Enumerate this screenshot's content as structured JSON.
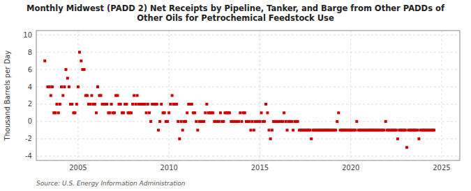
{
  "chart_data": {
    "type": "scatter",
    "title": "Monthly Midwest (PADD 2) Net Receipts by Pipeline, Tanker, and Barge from Other PADDs of\nOther Oils for Petrochemical Feedstock Use",
    "ylabel": "Thousand Barrels per Day",
    "source": "Source: U.S. Energy Information Administration",
    "color": "#cc0000",
    "marker": "square",
    "grid": true,
    "xlim": [
      2002.7,
      2026.0
    ],
    "ylim": [
      -4.5,
      10.5
    ],
    "yticks": [
      -4,
      -2,
      0,
      2,
      4,
      6,
      8,
      10
    ],
    "xticks": [
      2005,
      2010,
      2015,
      2020,
      2025
    ],
    "x": [
      2003.17,
      2003.33,
      2003.42,
      2003.5,
      2003.58,
      2003.67,
      2003.75,
      2003.83,
      2003.92,
      2004.0,
      2004.08,
      2004.17,
      2004.25,
      2004.33,
      2004.42,
      2004.5,
      2004.58,
      2004.67,
      2004.75,
      2004.83,
      2004.92,
      2005.0,
      2005.08,
      2005.17,
      2005.25,
      2005.33,
      2005.42,
      2005.5,
      2005.58,
      2005.67,
      2005.75,
      2005.83,
      2005.92,
      2006.0,
      2006.08,
      2006.17,
      2006.25,
      2006.33,
      2006.42,
      2006.5,
      2006.58,
      2006.67,
      2006.75,
      2006.83,
      2006.92,
      2007.0,
      2007.08,
      2007.17,
      2007.25,
      2007.33,
      2007.42,
      2007.5,
      2007.58,
      2007.67,
      2007.75,
      2007.83,
      2007.92,
      2008.0,
      2008.08,
      2008.17,
      2008.25,
      2008.33,
      2008.42,
      2008.5,
      2008.58,
      2008.67,
      2008.75,
      2008.83,
      2008.92,
      2009.0,
      2009.08,
      2009.17,
      2009.25,
      2009.33,
      2009.42,
      2009.5,
      2009.58,
      2009.67,
      2009.75,
      2009.83,
      2009.92,
      2010.0,
      2010.08,
      2010.17,
      2010.25,
      2010.33,
      2010.42,
      2010.5,
      2010.58,
      2010.67,
      2010.75,
      2010.83,
      2010.92,
      2011.0,
      2011.08,
      2011.17,
      2011.25,
      2011.33,
      2011.42,
      2011.5,
      2011.58,
      2011.67,
      2011.75,
      2011.83,
      2011.92,
      2012.0,
      2012.08,
      2012.17,
      2012.25,
      2012.33,
      2012.42,
      2012.5,
      2012.58,
      2012.67,
      2012.75,
      2012.83,
      2012.92,
      2013.0,
      2013.08,
      2013.17,
      2013.25,
      2013.33,
      2013.42,
      2013.5,
      2013.58,
      2013.67,
      2013.75,
      2013.83,
      2013.92,
      2014.0,
      2014.08,
      2014.17,
      2014.25,
      2014.33,
      2014.42,
      2014.5,
      2014.58,
      2014.67,
      2014.75,
      2014.83,
      2014.92,
      2015.0,
      2015.08,
      2015.17,
      2015.25,
      2015.33,
      2015.42,
      2015.5,
      2015.58,
      2015.67,
      2015.75,
      2015.83,
      2015.92,
      2016.0,
      2016.08,
      2016.17,
      2016.25,
      2016.33,
      2016.42,
      2016.5,
      2016.58,
      2016.67,
      2016.75,
      2016.83,
      2016.92,
      2017.0,
      2017.08,
      2017.17,
      2017.25,
      2017.33,
      2017.42,
      2017.5,
      2017.58,
      2017.67,
      2017.75,
      2017.83,
      2017.92,
      2018.0,
      2018.08,
      2018.17,
      2018.25,
      2018.33,
      2018.42,
      2018.5,
      2018.58,
      2018.67,
      2018.75,
      2018.83,
      2018.92,
      2019.0,
      2019.08,
      2019.17,
      2019.25,
      2019.33,
      2019.42,
      2019.5,
      2019.58,
      2019.67,
      2019.75,
      2019.83,
      2019.92,
      2020.0,
      2020.08,
      2020.17,
      2020.25,
      2020.33,
      2020.42,
      2020.5,
      2020.58,
      2020.67,
      2020.75,
      2020.83,
      2020.92,
      2021.0,
      2021.08,
      2021.17,
      2021.25,
      2021.33,
      2021.42,
      2021.5,
      2021.58,
      2021.67,
      2021.75,
      2021.83,
      2021.92,
      2022.0,
      2022.08,
      2022.17,
      2022.25,
      2022.33,
      2022.42,
      2022.5,
      2022.58,
      2022.67,
      2022.75,
      2022.83,
      2022.92,
      2023.0,
      2023.08,
      2023.17,
      2023.25,
      2023.33,
      2023.42,
      2023.5,
      2023.58,
      2023.67,
      2023.75,
      2023.83,
      2023.92,
      2024.0,
      2024.08,
      2024.17,
      2024.25,
      2024.33,
      2024.42,
      2024.5,
      2024.58
    ],
    "values": [
      7.0,
      4.0,
      4.0,
      3.0,
      4.0,
      1.0,
      1.0,
      2.0,
      1.0,
      2.0,
      4.0,
      3.0,
      4.0,
      6.0,
      5.0,
      4.0,
      2.0,
      2.0,
      1.0,
      1.0,
      2.0,
      4.0,
      8.0,
      7.0,
      6.0,
      6.0,
      3.0,
      3.0,
      2.0,
      2.0,
      3.0,
      2.0,
      2.0,
      1.0,
      4.0,
      3.0,
      3.0,
      2.0,
      2.0,
      2.0,
      2.0,
      1.0,
      1.0,
      2.0,
      1.0,
      1.0,
      3.0,
      3.0,
      2.0,
      2.0,
      1.0,
      1.0,
      2.0,
      2.0,
      1.0,
      1.0,
      1.0,
      2.0,
      3.0,
      2.0,
      3.0,
      2.0,
      2.0,
      2.0,
      2.0,
      2.0,
      1.0,
      2.0,
      1.0,
      0.0,
      2.0,
      2.0,
      2.0,
      2.0,
      -1.0,
      0.0,
      2.0,
      1.0,
      1.0,
      0.0,
      0.0,
      1.0,
      2.0,
      3.0,
      2.0,
      2.0,
      2.0,
      0.0,
      -2.0,
      0.0,
      -1.0,
      0.0,
      0.0,
      1.0,
      2.0,
      2.0,
      2.0,
      1.0,
      1.0,
      0.0,
      -1.0,
      0.0,
      0.0,
      0.0,
      0.0,
      1.0,
      2.0,
      1.0,
      1.0,
      1.0,
      1.0,
      0.0,
      0.0,
      0.0,
      0.0,
      1.0,
      0.0,
      0.0,
      1.0,
      1.0,
      1.0,
      1.0,
      0.0,
      0.0,
      0.0,
      0.0,
      0.0,
      0.0,
      1.0,
      0.0,
      1.0,
      1.0,
      0.0,
      0.0,
      0.0,
      -1.0,
      0.0,
      -1.0,
      0.0,
      0.0,
      0.0,
      0.0,
      1.0,
      0.0,
      0.0,
      2.0,
      1.0,
      -1.0,
      -2.0,
      -1.0,
      0.0,
      0.0,
      0.0,
      0.0,
      0.0,
      0.0,
      0.0,
      1.0,
      0.0,
      -1.0,
      0.0,
      0.0,
      0.0,
      -1.0,
      0.0,
      0.0,
      0.0,
      -1.0,
      -1.0,
      -1.0,
      -1.0,
      -1.0,
      -1.0,
      -1.0,
      -1.0,
      -2.0,
      -1.0,
      -1.0,
      -1.0,
      -1.0,
      -1.0,
      -1.0,
      -1.0,
      -1.0,
      -1.0,
      -1.0,
      -1.0,
      -1.0,
      -1.0,
      -1.0,
      -1.0,
      -1.0,
      0.0,
      1.0,
      -1.0,
      -1.0,
      -1.0,
      -1.0,
      -1.0,
      -1.0,
      -1.0,
      -1.0,
      -1.0,
      -1.0,
      -1.0,
      0.0,
      -1.0,
      -1.0,
      -1.0,
      -1.0,
      -1.0,
      -1.0,
      -1.0,
      -1.0,
      -1.0,
      -1.0,
      -1.0,
      -1.0,
      -1.0,
      -1.0,
      -1.0,
      -1.0,
      -1.0,
      -1.0,
      0.0,
      -1.0,
      -1.0,
      -1.0,
      -1.0,
      -1.0,
      -1.0,
      -1.0,
      -2.0,
      -1.0,
      -1.0,
      -1.0,
      -1.0,
      -1.0,
      -3.0,
      -1.0,
      -1.0,
      -1.0,
      -1.0,
      -1.0,
      -1.0,
      -1.0,
      -2.0,
      -1.0,
      -1.0,
      -1.0,
      -1.0,
      -1.0,
      -1.0,
      -1.0,
      -1.0,
      -1.0,
      -1.0
    ]
  }
}
